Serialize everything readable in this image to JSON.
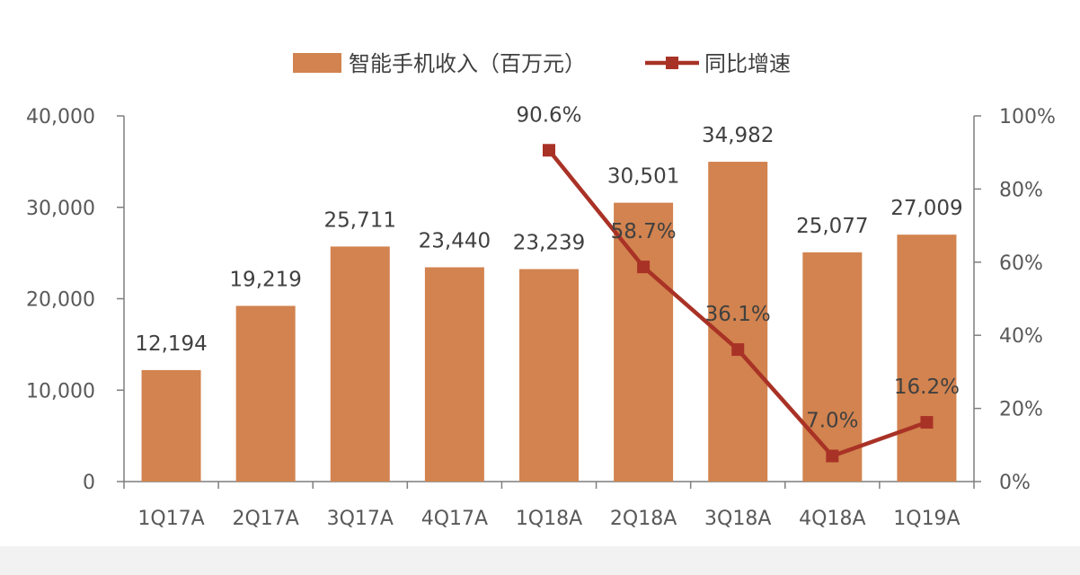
{
  "chart_data": {
    "type": "bar",
    "title": "",
    "categories": [
      "1Q17A",
      "2Q17A",
      "3Q17A",
      "4Q17A",
      "1Q18A",
      "2Q18A",
      "3Q18A",
      "4Q18A",
      "1Q19A"
    ],
    "series": [
      {
        "name": "智能手机收入（百万元）",
        "type": "bar",
        "axis": "left",
        "color": "#d2834f",
        "values": [
          12194,
          19219,
          25711,
          23440,
          23239,
          30501,
          34982,
          25077,
          27009
        ],
        "labels": [
          "12,194",
          "19,219",
          "25,711",
          "23,440",
          "23,239",
          "30,501",
          "34,982",
          "25,077",
          "27,009"
        ]
      },
      {
        "name": "同比增速",
        "type": "line",
        "axis": "right",
        "color": "#a93226",
        "values": [
          null,
          null,
          null,
          null,
          90.6,
          58.7,
          36.1,
          7.0,
          16.2
        ],
        "labels": [
          "",
          "",
          "",
          "",
          "90.6%",
          "58.7%",
          "36.1%",
          "7.0%",
          "16.2%"
        ]
      }
    ],
    "y_left": {
      "label": "",
      "ylim": [
        0,
        40000
      ],
      "ticks": [
        0,
        10000,
        20000,
        30000,
        40000
      ],
      "tick_labels": [
        "0",
        "10,000",
        "20,000",
        "30,000",
        "40,000"
      ]
    },
    "y_right": {
      "label": "",
      "ylim": [
        0,
        100
      ],
      "ticks": [
        0,
        20,
        40,
        60,
        80,
        100
      ],
      "tick_labels": [
        "0%",
        "20%",
        "40%",
        "60%",
        "80%",
        "100%"
      ]
    },
    "grid": false,
    "legend_position": "top-center"
  }
}
